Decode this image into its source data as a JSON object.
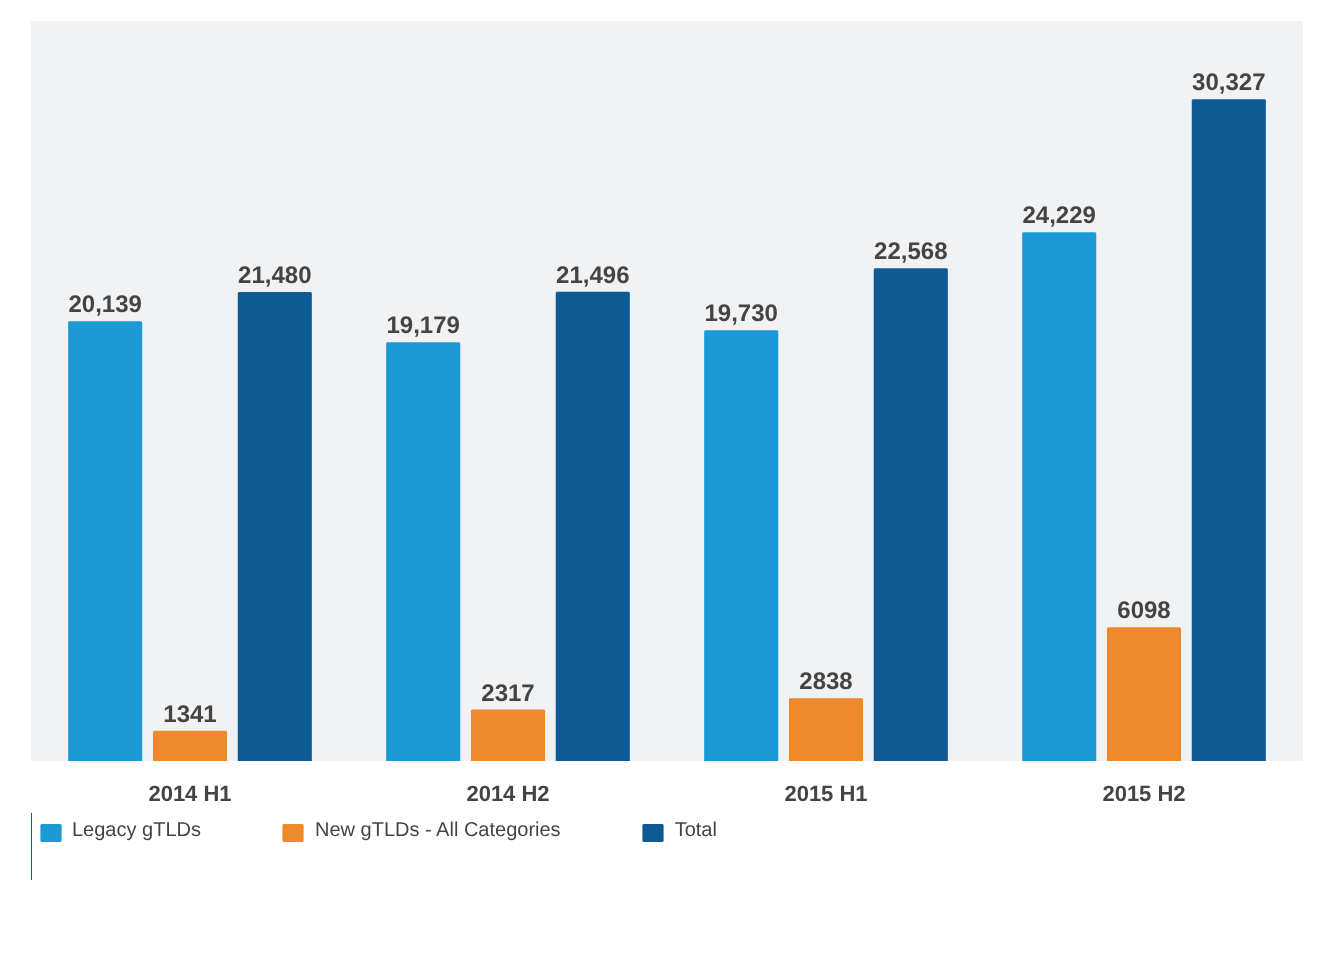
{
  "chart_data": {
    "type": "bar",
    "categories": [
      "2014 H1",
      "2014 H2",
      "2015 H1",
      "2015 H2"
    ],
    "series": [
      {
        "name": "Legacy gTLDs",
        "color": "#1b9ad6",
        "values": [
          20139,
          19179,
          19730,
          24229
        ],
        "value_labels": [
          "20,139",
          "19,179",
          "19,730",
          "24,229"
        ]
      },
      {
        "name": "New gTLDs - All Categories",
        "color": "#ee8a2c",
        "values": [
          1341,
          2317,
          2838,
          6098
        ],
        "value_labels": [
          "1341",
          "2317",
          "2838",
          "6098"
        ]
      },
      {
        "name": "Total",
        "color": "#0d5a94",
        "values": [
          21480,
          21496,
          22568,
          30327
        ],
        "value_labels": [
          "21,480",
          "21,496",
          "22,568",
          "30,327"
        ]
      }
    ],
    "legend": "bottom left"
  }
}
